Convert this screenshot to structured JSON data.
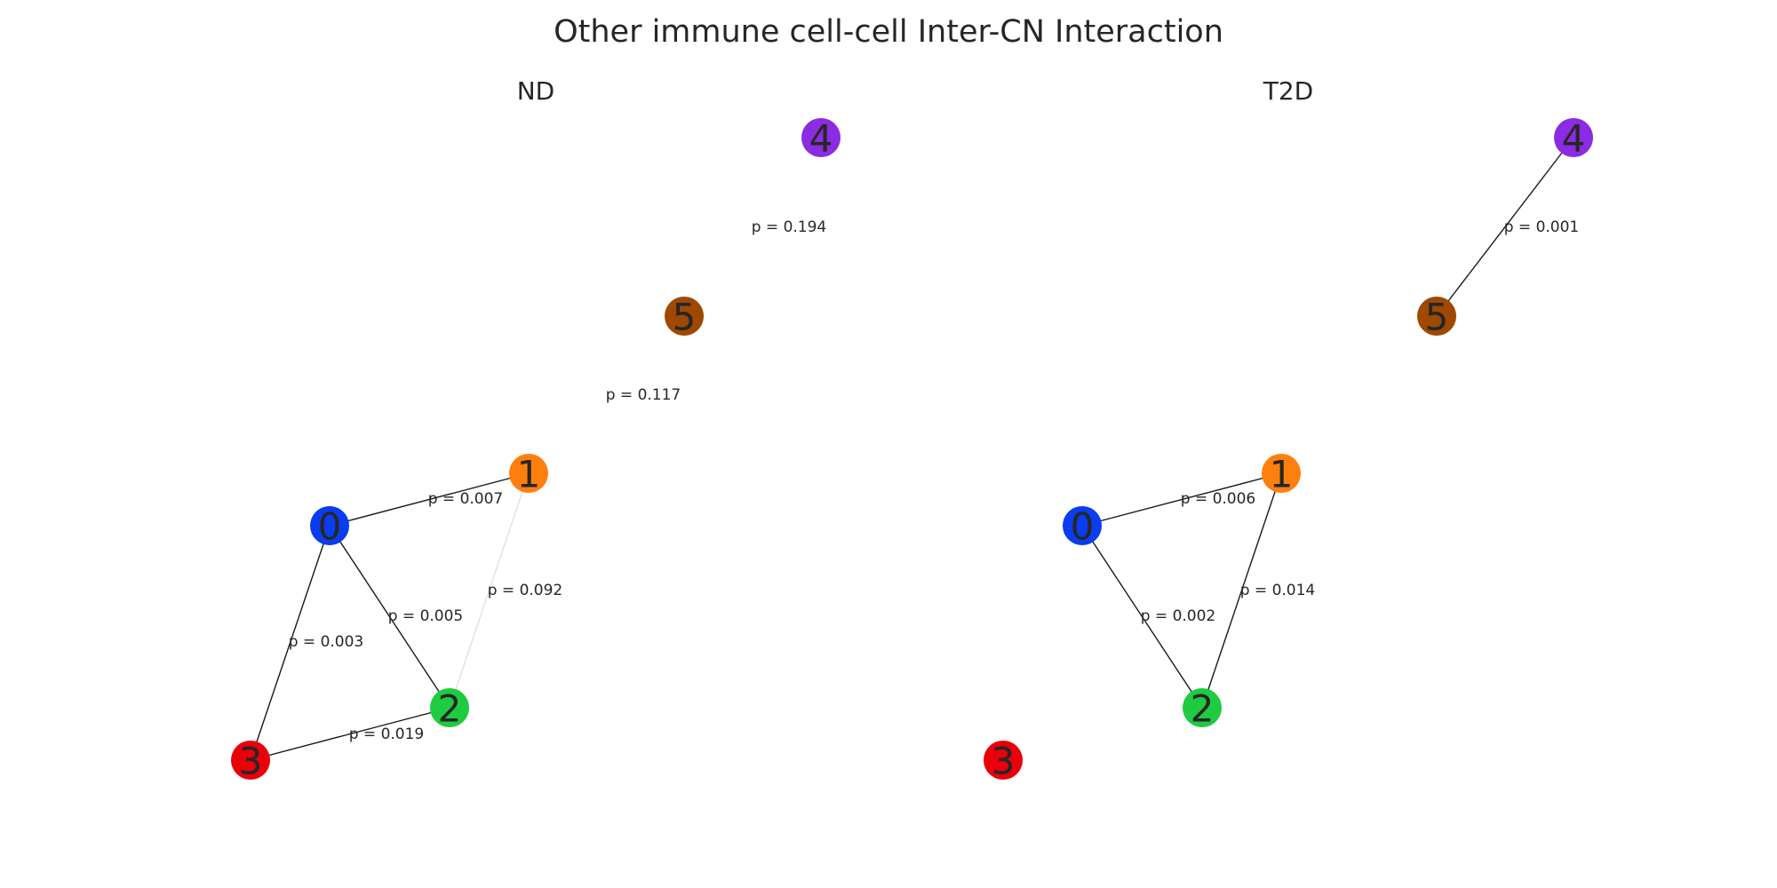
{
  "title": "Other immune cell-cell Inter-CN Interaction",
  "node_colors": {
    "0": "#0a3cf0",
    "1": "#ff7f0e",
    "2": "#1fcb3f",
    "3": "#e8000b",
    "4": "#8b2be2",
    "5": "#9f4800"
  },
  "panels": [
    {
      "name": "ND",
      "nodes": [
        "0",
        "1",
        "2",
        "3",
        "4",
        "5"
      ],
      "edges": [
        {
          "source": "0",
          "target": "1",
          "label": "p = 0.007",
          "p": 0.007
        },
        {
          "source": "0",
          "target": "2",
          "label": "p = 0.005",
          "p": 0.005
        },
        {
          "source": "0",
          "target": "3",
          "label": "p = 0.003",
          "p": 0.003
        },
        {
          "source": "1",
          "target": "2",
          "label": "p = 0.092",
          "p": 0.092
        },
        {
          "source": "2",
          "target": "3",
          "label": "p = 0.019",
          "p": 0.019
        },
        {
          "source": "5",
          "target": "4",
          "label": "p = 0.194",
          "p": 0.194
        },
        {
          "source": "1",
          "target": "5",
          "label": "p = 0.117",
          "p": 0.117
        }
      ]
    },
    {
      "name": "T2D",
      "nodes": [
        "0",
        "1",
        "2",
        "3",
        "4",
        "5"
      ],
      "edges": [
        {
          "source": "0",
          "target": "1",
          "label": "p = 0.006",
          "p": 0.006
        },
        {
          "source": "0",
          "target": "2",
          "label": "p = 0.002",
          "p": 0.002
        },
        {
          "source": "1",
          "target": "2",
          "label": "p = 0.014",
          "p": 0.014
        },
        {
          "source": "5",
          "target": "4",
          "label": "p = 0.001",
          "p": 0.001
        }
      ]
    }
  ]
}
